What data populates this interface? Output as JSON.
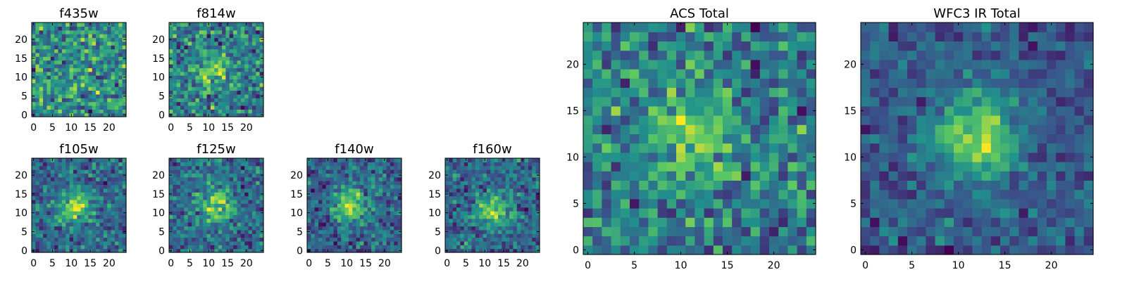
{
  "chart_data": [
    {
      "type": "heatmap",
      "title": "f435w",
      "colormap": "viridis",
      "grid_size": 25,
      "xlim": [
        -0.5,
        24.5
      ],
      "ylim": [
        -0.5,
        24.5
      ],
      "x_ticks": [
        "0",
        "5",
        "10",
        "15",
        "20"
      ],
      "y_ticks": [
        "0",
        "5",
        "10",
        "15",
        "20"
      ],
      "noise": 1.0,
      "peak": {
        "x": 13,
        "y": 14,
        "amplitude": 0.1
      },
      "seed": 11
    },
    {
      "type": "heatmap",
      "title": "f814w",
      "colormap": "viridis",
      "grid_size": 25,
      "xlim": [
        -0.5,
        24.5
      ],
      "ylim": [
        -0.5,
        24.5
      ],
      "x_ticks": [
        "0",
        "5",
        "10",
        "15",
        "20"
      ],
      "y_ticks": [
        "0",
        "5",
        "10",
        "15",
        "20",
        "25"
      ],
      "noise": 0.8,
      "peak": {
        "x": 11,
        "y": 12,
        "amplitude": 0.5
      },
      "seed": 23
    },
    {
      "type": "heatmap",
      "title": "f105w",
      "colormap": "viridis",
      "grid_size": 25,
      "xlim": [
        -0.5,
        24.5
      ],
      "ylim": [
        -0.5,
        24.5
      ],
      "x_ticks": [
        "0",
        "5",
        "10",
        "15",
        "20"
      ],
      "y_ticks": [
        "0",
        "5",
        "10",
        "15",
        "20"
      ],
      "noise": 0.55,
      "peak": {
        "x": 11,
        "y": 12,
        "amplitude": 0.7
      },
      "seed": 37
    },
    {
      "type": "heatmap",
      "title": "f125w",
      "colormap": "viridis",
      "grid_size": 25,
      "xlim": [
        -0.5,
        24.5
      ],
      "ylim": [
        -0.5,
        24.5
      ],
      "x_ticks": [
        "0",
        "5",
        "10",
        "15",
        "20"
      ],
      "y_ticks": [
        "0",
        "5",
        "10",
        "15",
        "20"
      ],
      "noise": 0.5,
      "peak": {
        "x": 12,
        "y": 12,
        "amplitude": 0.6
      },
      "seed": 41
    },
    {
      "type": "heatmap",
      "title": "f140w",
      "colormap": "viridis",
      "grid_size": 25,
      "xlim": [
        -0.5,
        24.5
      ],
      "ylim": [
        -0.5,
        24.5
      ],
      "x_ticks": [
        "0",
        "5",
        "10",
        "15",
        "20"
      ],
      "y_ticks": [
        "0",
        "5",
        "10",
        "15",
        "20"
      ],
      "noise": 0.55,
      "peak": {
        "x": 11,
        "y": 12,
        "amplitude": 0.8
      },
      "seed": 53
    },
    {
      "type": "heatmap",
      "title": "f160w",
      "colormap": "viridis",
      "grid_size": 25,
      "xlim": [
        -0.5,
        24.5
      ],
      "ylim": [
        -0.5,
        24.5
      ],
      "x_ticks": [
        "0",
        "5",
        "10",
        "15",
        "20"
      ],
      "y_ticks": [
        "0",
        "5",
        "10",
        "15",
        "20"
      ],
      "noise": 0.55,
      "peak": {
        "x": 12,
        "y": 11,
        "amplitude": 0.7
      },
      "seed": 67
    },
    {
      "type": "heatmap",
      "title": "ACS Total",
      "colormap": "viridis",
      "grid_size": 25,
      "xlim": [
        -0.5,
        24.5
      ],
      "ylim": [
        -0.5,
        24.5
      ],
      "x_ticks": [
        "0",
        "5",
        "10",
        "15",
        "20"
      ],
      "y_ticks": [
        "0",
        "5",
        "10",
        "15",
        "20"
      ],
      "noise": 0.75,
      "peak": {
        "x": 11,
        "y": 12,
        "amplitude": 0.55
      },
      "seed": 79
    },
    {
      "type": "heatmap",
      "title": "WFC3 IR Total",
      "colormap": "viridis",
      "grid_size": 25,
      "xlim": [
        -0.5,
        24.5
      ],
      "ylim": [
        -0.5,
        24.5
      ],
      "x_ticks": [
        "0",
        "5",
        "10",
        "15",
        "20"
      ],
      "y_ticks": [
        "0",
        "5",
        "10",
        "15",
        "20"
      ],
      "noise": 0.45,
      "peak": {
        "x": 12,
        "y": 12,
        "amplitude": 0.9
      },
      "seed": 97
    }
  ]
}
